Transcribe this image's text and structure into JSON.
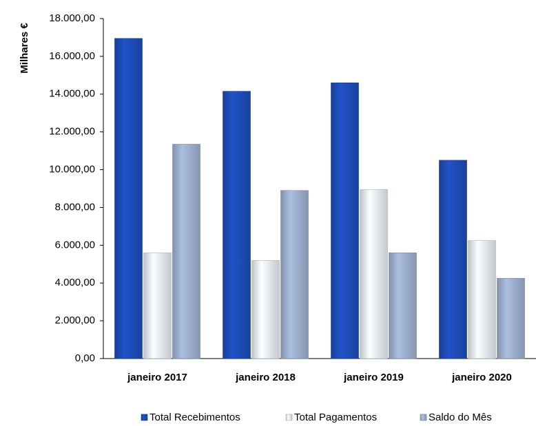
{
  "chart_data": {
    "type": "bar",
    "y_label": "Milhares €",
    "categories": [
      "janeiro 2017",
      "janeiro 2018",
      "janeiro 2019",
      "janeiro 2020"
    ],
    "series": [
      {
        "name": "Total Recebimentos",
        "color": "#1f4fbf",
        "values": [
          16950,
          14150,
          14600,
          10500
        ]
      },
      {
        "name": "Total Pagamentos",
        "color": "#eef3fb",
        "values": [
          5600,
          5200,
          8950,
          6250
        ]
      },
      {
        "name": "Saldo do Mês",
        "color": "#a3b6d6",
        "values": [
          11350,
          8900,
          5600,
          4250
        ]
      }
    ],
    "ylim": [
      0,
      18000
    ],
    "yticks": [
      {
        "value": 0,
        "label": "0,00"
      },
      {
        "value": 2000,
        "label": "2.000,00"
      },
      {
        "value": 4000,
        "label": "4.000,00"
      },
      {
        "value": 6000,
        "label": "6.000,00"
      },
      {
        "value": 8000,
        "label": "8.000,00"
      },
      {
        "value": 10000,
        "label": "10.000,00"
      },
      {
        "value": 12000,
        "label": "12.000,00"
      },
      {
        "value": 14000,
        "label": "14.000,00"
      },
      {
        "value": 16000,
        "label": "16.000,00"
      },
      {
        "value": 18000,
        "label": "18.000,00"
      }
    ],
    "grid": false,
    "legend": "bottom"
  }
}
